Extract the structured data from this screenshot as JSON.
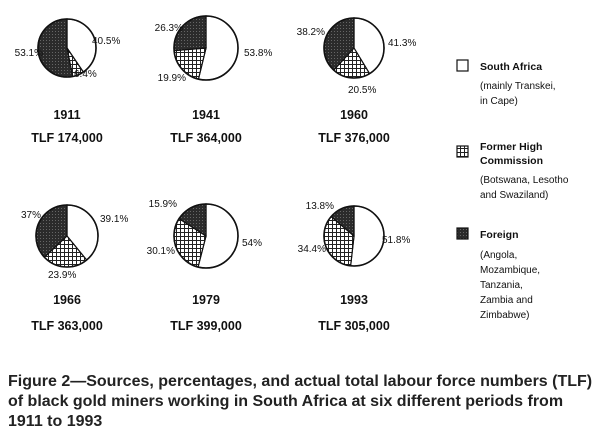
{
  "chart_data": {
    "type": "pie",
    "series_names": [
      "South Africa",
      "Former High Commission",
      "Foreign"
    ],
    "charts": [
      {
        "year": "1911",
        "tlf": "TLF  174,000",
        "values": [
          40.5,
          6.4,
          53.1
        ],
        "labels": [
          "40.5%",
          "6.4%",
          "53.1%"
        ]
      },
      {
        "year": "1941",
        "tlf": "TLF  364,000",
        "values": [
          53.8,
          19.9,
          26.3
        ],
        "labels": [
          "53.8%",
          "19.9%",
          "26.3%"
        ]
      },
      {
        "year": "1960",
        "tlf": "TLF  376,000",
        "values": [
          41.3,
          20.5,
          38.2
        ],
        "labels": [
          "41.3%",
          "20.5%",
          "38.2%"
        ]
      },
      {
        "year": "1966",
        "tlf": "TLF  363,000",
        "values": [
          39.1,
          23.9,
          37.0
        ],
        "labels": [
          "39.1%",
          "23.9%",
          "37%"
        ]
      },
      {
        "year": "1979",
        "tlf": "TLF  399,000",
        "values": [
          54.0,
          30.1,
          15.9
        ],
        "labels": [
          "54%",
          "30.1%",
          "15.9%"
        ]
      },
      {
        "year": "1993",
        "tlf": "TLF  305,000",
        "values": [
          51.8,
          34.4,
          13.8
        ],
        "labels": [
          "51.8%",
          "34.4%",
          "13.8%"
        ]
      }
    ]
  },
  "legend": [
    {
      "name": "South Africa",
      "lines": [
        "(mainly Transkei,",
        "in Cape)"
      ],
      "fill": "white"
    },
    {
      "name": "Former High",
      "name2": "Commission",
      "lines": [
        "(Botswana, Lesotho",
        "and Swaziland)"
      ],
      "fill": "grid"
    },
    {
      "name": "Foreign",
      "lines": [
        "(Angola,",
        "Mozambique,",
        "Tanzania,",
        "Zambia and",
        "Zimbabwe)"
      ],
      "fill": "dark"
    }
  ],
  "caption": "Figure 2—Sources, percentages, and actual total labour force numbers (TLF) of black gold miners working in South Africa at six different periods from 1911 to 1993",
  "colors": {
    "ink": "#111111",
    "dark": "#2b2b2b",
    "grid_line": "#222222",
    "background": "#ffffff"
  }
}
